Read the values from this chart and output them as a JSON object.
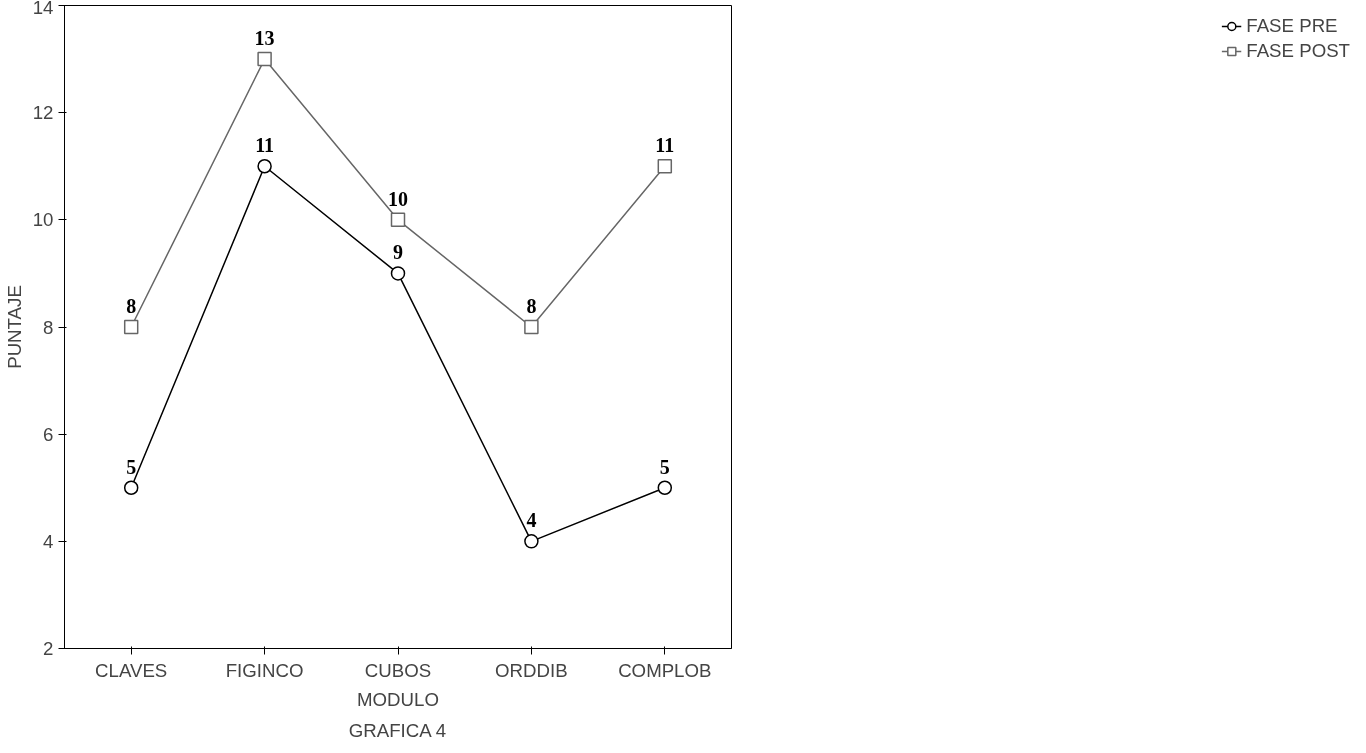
{
  "chart_data": {
    "type": "line",
    "title": "GRAFICA 4",
    "xlabel": "MODULO",
    "ylabel": "PUNTAJE",
    "categories": [
      "CLAVES",
      "FIGINCO",
      "CUBOS",
      "ORDDIB",
      "COMPLOB"
    ],
    "series": [
      {
        "name": "FASE PRE",
        "color": "#000000",
        "values": [
          5,
          11,
          9,
          4,
          5
        ],
        "marker": "circle"
      },
      {
        "name": "FASE POST",
        "color": "#666666",
        "values": [
          8,
          13,
          10,
          8,
          11
        ],
        "marker": "square"
      }
    ],
    "ylim": [
      2,
      14
    ],
    "yticks": [
      2,
      4,
      6,
      8,
      10,
      12,
      14
    ],
    "grid": false,
    "legend": "right",
    "data_labels": true
  }
}
